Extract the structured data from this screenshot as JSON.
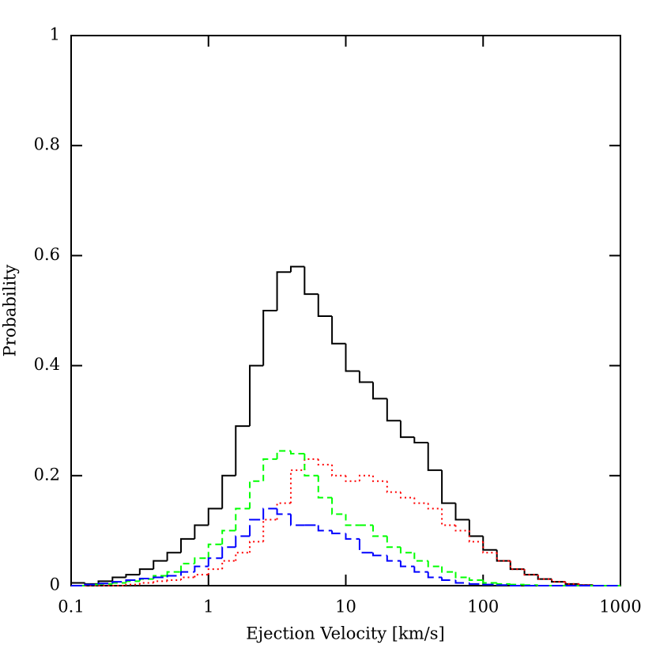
{
  "chart_data": {
    "type": "histogram",
    "xlabel": "Ejection Velocity [km/s]",
    "ylabel": "Probability",
    "xscale": "log",
    "xlim": [
      0.1,
      1000
    ],
    "xticks": [
      0.1,
      1,
      10,
      100,
      1000
    ],
    "ylim": [
      0,
      1
    ],
    "yticks": [
      0,
      0.2,
      0.4,
      0.6,
      0.8,
      1
    ],
    "bins": [
      0.1,
      0.126,
      0.158,
      0.2,
      0.251,
      0.316,
      0.398,
      0.501,
      0.631,
      0.794,
      1,
      1.26,
      1.58,
      2,
      2.51,
      3.16,
      3.98,
      5.01,
      6.31,
      7.94,
      10,
      12.6,
      15.8,
      20,
      25.1,
      31.6,
      39.8,
      50.1,
      63.1,
      79.4,
      100,
      126,
      158,
      200,
      251,
      316,
      398,
      501,
      631,
      794,
      1000
    ],
    "series": [
      {
        "color": "#000000",
        "line_style": "solid",
        "values": [
          0.005,
          0.003,
          0.008,
          0.015,
          0.02,
          0.03,
          0.045,
          0.06,
          0.085,
          0.11,
          0.14,
          0.2,
          0.29,
          0.4,
          0.5,
          0.57,
          0.58,
          0.53,
          0.49,
          0.44,
          0.39,
          0.37,
          0.34,
          0.3,
          0.27,
          0.26,
          0.21,
          0.15,
          0.12,
          0.09,
          0.065,
          0.045,
          0.03,
          0.02,
          0.012,
          0.007,
          0.003,
          0.001,
          0,
          0
        ]
      },
      {
        "color": "#ff0000",
        "line_style": "dotted",
        "values": [
          0,
          0,
          0,
          0,
          0.002,
          0.005,
          0.008,
          0.01,
          0.015,
          0.02,
          0.03,
          0.045,
          0.06,
          0.08,
          0.12,
          0.15,
          0.21,
          0.23,
          0.22,
          0.2,
          0.19,
          0.2,
          0.19,
          0.17,
          0.16,
          0.15,
          0.14,
          0.11,
          0.1,
          0.08,
          0.06,
          0.045,
          0.03,
          0.02,
          0.012,
          0.007,
          0.003,
          0.001,
          0,
          0
        ]
      },
      {
        "color": "#00ff00",
        "line_style": "dashed",
        "values": [
          0,
          0.002,
          0.003,
          0.005,
          0.008,
          0.012,
          0.018,
          0.025,
          0.04,
          0.05,
          0.075,
          0.1,
          0.14,
          0.19,
          0.23,
          0.245,
          0.24,
          0.2,
          0.16,
          0.13,
          0.11,
          0.11,
          0.09,
          0.07,
          0.06,
          0.045,
          0.035,
          0.025,
          0.015,
          0.01,
          0.005,
          0.003,
          0.002,
          0.001,
          0,
          0,
          0,
          0,
          0,
          0
        ]
      },
      {
        "color": "#0000ff",
        "line_style": "longdash",
        "values": [
          0,
          0.002,
          0.004,
          0.007,
          0.01,
          0.013,
          0.015,
          0.018,
          0.025,
          0.035,
          0.05,
          0.07,
          0.09,
          0.12,
          0.14,
          0.13,
          0.11,
          0.11,
          0.1,
          0.095,
          0.085,
          0.06,
          0.055,
          0.045,
          0.035,
          0.025,
          0.015,
          0.01,
          0.005,
          0.003,
          0.002,
          0.001,
          0,
          0,
          0,
          0,
          0,
          0,
          0,
          0
        ]
      }
    ]
  }
}
